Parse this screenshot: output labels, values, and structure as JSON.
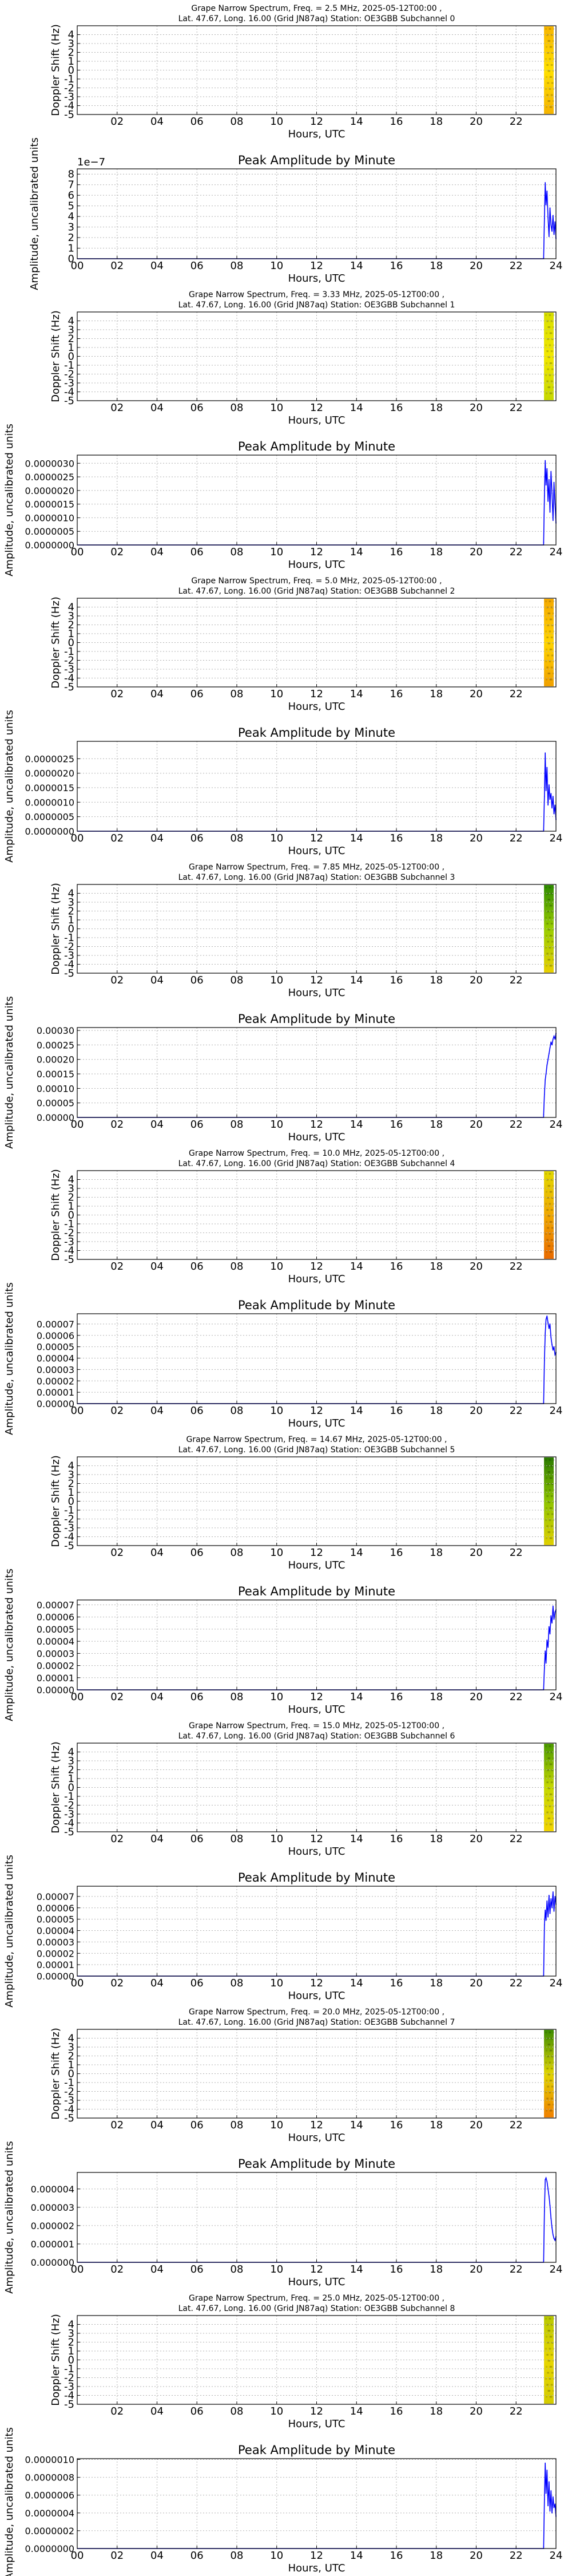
{
  "figure_title": "",
  "chart_data": [
    {
      "type": "heatmap",
      "index": 0,
      "title_line1": "Grape Narrow Spectrum, Freq. = 2.5 MHz, 2025-05-12T00:00 ,",
      "title_line2": "Lat.  47.67, Long.  16.00 (Grid JN87aq) Station: OE3GBB Subchannel 0",
      "xlabel": "Hours, UTC",
      "ylabel": "Doppler Shift (Hz)",
      "xlim": [
        0,
        24
      ],
      "ylim": [
        -5,
        5
      ],
      "xticks": [
        "02",
        "04",
        "06",
        "08",
        "10",
        "12",
        "14",
        "16",
        "18",
        "20",
        "22"
      ],
      "yticks": [
        "-5",
        "-4",
        "-3",
        "-2",
        "-1",
        "0",
        "1",
        "2",
        "3",
        "4"
      ],
      "data_start_hour": 23.4,
      "colormap": [
        "#f7b500",
        "#ffe000",
        "#f5b400"
      ]
    },
    {
      "type": "line",
      "index": 0,
      "title": "Peak Amplitude by Minute",
      "xlabel": "Hours, UTC",
      "ylabel": "Amplitude, uncalibrated units",
      "xlim": [
        0,
        24
      ],
      "ylim": [
        0,
        8.5
      ],
      "xticks": [
        "00",
        "02",
        "04",
        "06",
        "08",
        "10",
        "12",
        "14",
        "16",
        "18",
        "20",
        "22",
        "24"
      ],
      "yticks": [
        "0",
        "1",
        "2",
        "3",
        "4",
        "5",
        "6",
        "7",
        "8"
      ],
      "offset_text": "1e−7",
      "series": [
        {
          "x": [
            23.38,
            23.42,
            23.46,
            23.5,
            23.55,
            23.6,
            23.65,
            23.7,
            23.75,
            23.8,
            23.85,
            23.9,
            23.95,
            24.0
          ],
          "values": [
            0.1,
            3.8,
            7.2,
            5.1,
            6.4,
            3.9,
            2.1,
            4.8,
            3.2,
            2.6,
            4.1,
            2.3,
            3.5,
            1.9
          ]
        }
      ]
    },
    {
      "type": "heatmap",
      "index": 1,
      "title_line1": "Grape Narrow Spectrum, Freq. = 3.33 MHz, 2025-05-12T00:00 ,",
      "title_line2": "Lat.  47.67, Long.  16.00 (Grid JN87aq) Station: OE3GBB Subchannel 1",
      "xlabel": "Hours, UTC",
      "ylabel": "Doppler Shift (Hz)",
      "xlim": [
        0,
        24
      ],
      "ylim": [
        -5,
        5
      ],
      "xticks": [
        "02",
        "04",
        "06",
        "08",
        "10",
        "12",
        "14",
        "16",
        "18",
        "20",
        "22"
      ],
      "yticks": [
        "-5",
        "-4",
        "-3",
        "-2",
        "-1",
        "0",
        "1",
        "2",
        "3",
        "4"
      ],
      "data_start_hour": 23.4,
      "colormap": [
        "#d8df00",
        "#f2e800",
        "#c6d800"
      ]
    },
    {
      "type": "line",
      "index": 1,
      "title": "Peak Amplitude by Minute",
      "xlabel": "Hours, UTC",
      "ylabel": "Amplitude, uncalibrated units",
      "xlim": [
        0,
        24
      ],
      "ylim": [
        0,
        3.3e-06
      ],
      "xticks": [
        "00",
        "02",
        "04",
        "06",
        "08",
        "10",
        "12",
        "14",
        "16",
        "18",
        "20",
        "22",
        "24"
      ],
      "yticks": [
        "0.0000000",
        "0.0000005",
        "0.0000010",
        "0.0000015",
        "0.0000020",
        "0.0000025",
        "0.0000030"
      ],
      "series": [
        {
          "x": [
            23.38,
            23.42,
            23.46,
            23.5,
            23.55,
            23.6,
            23.65,
            23.7,
            23.75,
            23.8,
            23.85,
            23.9,
            23.95,
            24.0
          ],
          "values": [
            1e-07,
            1.8e-06,
            3.1e-06,
            2.2e-06,
            2.8e-06,
            1.6e-06,
            2.4e-06,
            1.2e-06,
            2.7e-06,
            1.9e-06,
            9e-07,
            2.3e-06,
            1.5e-06,
            8e-07
          ]
        }
      ]
    },
    {
      "type": "heatmap",
      "index": 2,
      "title_line1": "Grape Narrow Spectrum, Freq. = 5.0 MHz, 2025-05-12T00:00 ,",
      "title_line2": "Lat.  47.67, Long.  16.00 (Grid JN87aq) Station: OE3GBB Subchannel 2",
      "xlabel": "Hours, UTC",
      "ylabel": "Doppler Shift (Hz)",
      "xlim": [
        0,
        24
      ],
      "ylim": [
        -5,
        5
      ],
      "xticks": [
        "02",
        "04",
        "06",
        "08",
        "10",
        "12",
        "14",
        "16",
        "18",
        "20",
        "22"
      ],
      "yticks": [
        "-5",
        "-4",
        "-3",
        "-2",
        "-1",
        "0",
        "1",
        "2",
        "3",
        "4"
      ],
      "data_start_hour": 23.4,
      "colormap": [
        "#f4a800",
        "#ffd400",
        "#f0a000"
      ]
    },
    {
      "type": "line",
      "index": 2,
      "title": "Peak Amplitude by Minute",
      "xlabel": "Hours, UTC",
      "ylabel": "Amplitude, uncalibrated units",
      "xlim": [
        0,
        24
      ],
      "ylim": [
        0,
        3.1e-06
      ],
      "xticks": [
        "00",
        "02",
        "04",
        "06",
        "08",
        "10",
        "12",
        "14",
        "16",
        "18",
        "20",
        "22",
        "24"
      ],
      "yticks": [
        "0.0000000",
        "0.0000005",
        "0.0000010",
        "0.0000015",
        "0.0000020",
        "0.0000025"
      ],
      "series": [
        {
          "x": [
            23.38,
            23.42,
            23.46,
            23.5,
            23.55,
            23.6,
            23.65,
            23.7,
            23.75,
            23.8,
            23.85,
            23.9,
            23.95,
            24.0
          ],
          "values": [
            5e-08,
            1.2e-06,
            2.7e-06,
            1.4e-06,
            2.2e-06,
            9e-07,
            1.6e-06,
            1.1e-06,
            1.3e-06,
            8e-07,
            1.2e-06,
            6e-07,
            9e-07,
            4e-07
          ]
        }
      ]
    },
    {
      "type": "heatmap",
      "index": 3,
      "title_line1": "Grape Narrow Spectrum, Freq. = 7.85 MHz, 2025-05-12T00:00 ,",
      "title_line2": "Lat.  47.67, Long.  16.00 (Grid JN87aq) Station: OE3GBB Subchannel 3",
      "xlabel": "Hours, UTC",
      "ylabel": "Doppler Shift (Hz)",
      "xlim": [
        0,
        24
      ],
      "ylim": [
        -5,
        5
      ],
      "xticks": [
        "02",
        "04",
        "06",
        "08",
        "10",
        "12",
        "14",
        "16",
        "18",
        "20",
        "22"
      ],
      "yticks": [
        "-5",
        "-4",
        "-3",
        "-2",
        "-1",
        "0",
        "1",
        "2",
        "3",
        "4"
      ],
      "data_start_hour": 23.4,
      "colormap": [
        "#2e8b00",
        "#9acd00",
        "#e8d000"
      ]
    },
    {
      "type": "line",
      "index": 3,
      "title": "Peak Amplitude by Minute",
      "xlabel": "Hours, UTC",
      "ylabel": "Amplitude, uncalibrated units",
      "xlim": [
        0,
        24
      ],
      "ylim": [
        0,
        0.00031
      ],
      "xticks": [
        "00",
        "02",
        "04",
        "06",
        "08",
        "10",
        "12",
        "14",
        "16",
        "18",
        "20",
        "22",
        "24"
      ],
      "yticks": [
        "0.00000",
        "0.00005",
        "0.00010",
        "0.00015",
        "0.00020",
        "0.00025",
        "0.00030"
      ],
      "series": [
        {
          "x": [
            23.38,
            23.42,
            23.46,
            23.5,
            23.55,
            23.6,
            23.65,
            23.7,
            23.75,
            23.8,
            23.85,
            23.9,
            23.95,
            24.0
          ],
          "values": [
            1e-05,
            8e-05,
            0.00013,
            0.00015,
            0.00018,
            0.0002,
            0.00022,
            0.00024,
            0.00026,
            0.00025,
            0.00027,
            0.00028,
            0.00027,
            0.00029
          ]
        }
      ]
    },
    {
      "type": "heatmap",
      "index": 4,
      "title_line1": "Grape Narrow Spectrum, Freq. = 10.0 MHz, 2025-05-12T00:00 ,",
      "title_line2": "Lat.  47.67, Long.  16.00 (Grid JN87aq) Station: OE3GBB Subchannel 4",
      "xlabel": "Hours, UTC",
      "ylabel": "Doppler Shift (Hz)",
      "xlim": [
        0,
        24
      ],
      "ylim": [
        -5,
        5
      ],
      "xticks": [
        "02",
        "04",
        "06",
        "08",
        "10",
        "12",
        "14",
        "16",
        "18",
        "20",
        "22"
      ],
      "yticks": [
        "-5",
        "-4",
        "-3",
        "-2",
        "-1",
        "0",
        "1",
        "2",
        "3",
        "4"
      ],
      "data_start_hour": 23.4,
      "colormap": [
        "#e2d800",
        "#f0a800",
        "#e86a00"
      ]
    },
    {
      "type": "line",
      "index": 4,
      "title": "Peak Amplitude by Minute",
      "xlabel": "Hours, UTC",
      "ylabel": "Amplitude, uncalibrated units",
      "xlim": [
        0,
        24
      ],
      "ylim": [
        0,
        7.9e-05
      ],
      "xticks": [
        "00",
        "02",
        "04",
        "06",
        "08",
        "10",
        "12",
        "14",
        "16",
        "18",
        "20",
        "22",
        "24"
      ],
      "yticks": [
        "0.00000",
        "0.00001",
        "0.00002",
        "0.00003",
        "0.00004",
        "0.00005",
        "0.00006",
        "0.00007"
      ],
      "series": [
        {
          "x": [
            23.38,
            23.42,
            23.46,
            23.5,
            23.55,
            23.6,
            23.65,
            23.7,
            23.75,
            23.8,
            23.85,
            23.9,
            23.95,
            24.0
          ],
          "values": [
            1e-06,
            3.8e-05,
            6.2e-05,
            7.4e-05,
            7.7e-05,
            7.1e-05,
            6.6e-05,
            7e-05,
            5.8e-05,
            5.2e-05,
            4.7e-05,
            5e-05,
            4.3e-05,
            4.5e-05
          ]
        }
      ]
    },
    {
      "type": "heatmap",
      "index": 5,
      "title_line1": "Grape Narrow Spectrum, Freq. = 14.67 MHz, 2025-05-12T00:00 ,",
      "title_line2": "Lat.  47.67, Long.  16.00 (Grid JN87aq) Station: OE3GBB Subchannel 5",
      "xlabel": "Hours, UTC",
      "ylabel": "Doppler Shift (Hz)",
      "xlim": [
        0,
        24
      ],
      "ylim": [
        -5,
        5
      ],
      "xticks": [
        "02",
        "04",
        "06",
        "08",
        "10",
        "12",
        "14",
        "16",
        "18",
        "20",
        "22"
      ],
      "yticks": [
        "-5",
        "-4",
        "-3",
        "-2",
        "-1",
        "0",
        "1",
        "2",
        "3",
        "4"
      ],
      "data_start_hour": 23.4,
      "colormap": [
        "#2a7a00",
        "#8fc400",
        "#e0d000"
      ]
    },
    {
      "type": "line",
      "index": 5,
      "title": "Peak Amplitude by Minute",
      "xlabel": "Hours, UTC",
      "ylabel": "Amplitude, uncalibrated units",
      "xlim": [
        0,
        24
      ],
      "ylim": [
        0,
        7.4e-05
      ],
      "xticks": [
        "00",
        "02",
        "04",
        "06",
        "08",
        "10",
        "12",
        "14",
        "16",
        "18",
        "20",
        "22",
        "24"
      ],
      "yticks": [
        "0.00000",
        "0.00001",
        "0.00002",
        "0.00003",
        "0.00004",
        "0.00005",
        "0.00006",
        "0.00007"
      ],
      "series": [
        {
          "x": [
            23.38,
            23.42,
            23.46,
            23.5,
            23.55,
            23.6,
            23.65,
            23.7,
            23.75,
            23.8,
            23.85,
            23.9,
            23.95,
            24.0
          ],
          "values": [
            1e-06,
            1.8e-05,
            3.2e-05,
            2.2e-05,
            4.1e-05,
            3.5e-05,
            5.2e-05,
            4.6e-05,
            6.1e-05,
            5.5e-05,
            6.9e-05,
            5.8e-05,
            6.4e-05,
            6.6e-05
          ]
        }
      ]
    },
    {
      "type": "heatmap",
      "index": 6,
      "title_line1": "Grape Narrow Spectrum, Freq. = 15.0 MHz, 2025-05-12T00:00 ,",
      "title_line2": "Lat.  47.67, Long.  16.00 (Grid JN87aq) Station: OE3GBB Subchannel 6",
      "xlabel": "Hours, UTC",
      "ylabel": "Doppler Shift (Hz)",
      "xlim": [
        0,
        24
      ],
      "ylim": [
        -5,
        5
      ],
      "xticks": [
        "02",
        "04",
        "06",
        "08",
        "10",
        "12",
        "14",
        "16",
        "18",
        "20",
        "22"
      ],
      "yticks": [
        "-5",
        "-4",
        "-3",
        "-2",
        "-1",
        "0",
        "1",
        "2",
        "3",
        "4"
      ],
      "data_start_hour": 23.4,
      "colormap": [
        "#4c9a00",
        "#c6d800",
        "#f2d400"
      ]
    },
    {
      "type": "line",
      "index": 6,
      "title": "Peak Amplitude by Minute",
      "xlabel": "Hours, UTC",
      "ylabel": "Amplitude, uncalibrated units",
      "xlim": [
        0,
        24
      ],
      "ylim": [
        0,
        7.9e-05
      ],
      "xticks": [
        "00",
        "02",
        "04",
        "06",
        "08",
        "10",
        "12",
        "14",
        "16",
        "18",
        "20",
        "22",
        "24"
      ],
      "yticks": [
        "0.00000",
        "0.00001",
        "0.00002",
        "0.00003",
        "0.00004",
        "0.00005",
        "0.00006",
        "0.00007"
      ],
      "series": [
        {
          "x": [
            23.38,
            23.42,
            23.46,
            23.5,
            23.55,
            23.6,
            23.65,
            23.7,
            23.75,
            23.8,
            23.85,
            23.9,
            23.95,
            24.0
          ],
          "values": [
            1e-06,
            4.5e-05,
            5.8e-05,
            4.9e-05,
            6.6e-05,
            5.2e-05,
            7.1e-05,
            5.5e-05,
            6.8e-05,
            6e-05,
            7.4e-05,
            5.7e-05,
            7e-05,
            6.3e-05
          ]
        }
      ]
    },
    {
      "type": "heatmap",
      "index": 7,
      "title_line1": "Grape Narrow Spectrum, Freq. = 20.0 MHz, 2025-05-12T00:00 ,",
      "title_line2": "Lat.  47.67, Long.  16.00 (Grid JN87aq) Station: OE3GBB Subchannel 7",
      "xlabel": "Hours, UTC",
      "ylabel": "Doppler Shift (Hz)",
      "xlim": [
        0,
        24
      ],
      "ylim": [
        -5,
        5
      ],
      "xticks": [
        "02",
        "04",
        "06",
        "08",
        "10",
        "12",
        "14",
        "16",
        "18",
        "20",
        "22"
      ],
      "yticks": [
        "-5",
        "-4",
        "-3",
        "-2",
        "-1",
        "0",
        "1",
        "2",
        "3",
        "4"
      ],
      "data_start_hour": 23.4,
      "colormap": [
        "#3c8c00",
        "#e0d400",
        "#f08000"
      ]
    },
    {
      "type": "line",
      "index": 7,
      "title": "Peak Amplitude by Minute",
      "xlabel": "Hours, UTC",
      "ylabel": "Amplitude, uncalibrated units",
      "xlim": [
        0,
        24
      ],
      "ylim": [
        0,
        4.9e-06
      ],
      "xticks": [
        "00",
        "02",
        "04",
        "06",
        "08",
        "10",
        "12",
        "14",
        "16",
        "18",
        "20",
        "22",
        "24"
      ],
      "yticks": [
        "0.000000",
        "0.000001",
        "0.000002",
        "0.000003",
        "0.000004"
      ],
      "series": [
        {
          "x": [
            23.38,
            23.42,
            23.46,
            23.5,
            23.55,
            23.6,
            23.65,
            23.7,
            23.75,
            23.8,
            23.85,
            23.9,
            23.95,
            24.0
          ],
          "values": [
            1e-07,
            2.8e-06,
            4.5e-06,
            4.6e-06,
            4.4e-06,
            4e-06,
            3.6e-06,
            3.1e-06,
            2.4e-06,
            1.9e-06,
            1.5e-06,
            1.3e-06,
            1.2e-06,
            1.4e-06
          ]
        }
      ]
    },
    {
      "type": "heatmap",
      "index": 8,
      "title_line1": "Grape Narrow Spectrum, Freq. = 25.0 MHz, 2025-05-12T00:00 ,",
      "title_line2": "Lat.  47.67, Long.  16.00 (Grid JN87aq) Station: OE3GBB Subchannel 8",
      "xlabel": "Hours, UTC",
      "ylabel": "Doppler Shift (Hz)",
      "xlim": [
        0,
        24
      ],
      "ylim": [
        -5,
        5
      ],
      "xticks": [
        "02",
        "04",
        "06",
        "08",
        "10",
        "12",
        "14",
        "16",
        "18",
        "20",
        "22"
      ],
      "yticks": [
        "-5",
        "-4",
        "-3",
        "-2",
        "-1",
        "0",
        "1",
        "2",
        "3",
        "4"
      ],
      "data_start_hour": 23.4,
      "colormap": [
        "#b8c800",
        "#e8d600",
        "#d4cc00"
      ]
    },
    {
      "type": "line",
      "index": 8,
      "title": "Peak Amplitude by Minute",
      "xlabel": "Hours, UTC",
      "ylabel": "Amplitude, uncalibrated units",
      "xlim": [
        0,
        24
      ],
      "ylim": [
        0,
        1.01e-06
      ],
      "xticks": [
        "00",
        "02",
        "04",
        "06",
        "08",
        "10",
        "12",
        "14",
        "16",
        "18",
        "20",
        "22",
        "24"
      ],
      "yticks": [
        "0.0000000",
        "0.0000002",
        "0.0000004",
        "0.0000006",
        "0.0000008",
        "0.0000010"
      ],
      "series": [
        {
          "x": [
            23.38,
            23.42,
            23.46,
            23.5,
            23.55,
            23.6,
            23.65,
            23.7,
            23.75,
            23.8,
            23.85,
            23.9,
            23.95,
            24.0
          ],
          "values": [
            2e-08,
            5.5e-07,
            9.6e-07,
            6.2e-07,
            8.8e-07,
            4.8e-07,
            7.5e-07,
            4.2e-07,
            6.5e-07,
            4e-07,
            5.8e-07,
            4.6e-07,
            5e-07,
            3.6e-07
          ]
        }
      ]
    }
  ]
}
